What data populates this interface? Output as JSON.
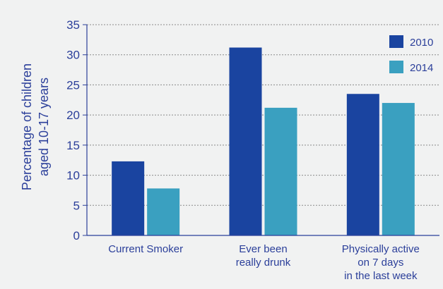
{
  "chart_data": {
    "type": "bar",
    "ylabel_lines": [
      "Percentage of children",
      "aged 10-17 years"
    ],
    "ylim": [
      0,
      35
    ],
    "yticks": [
      0,
      5,
      10,
      15,
      20,
      25,
      30,
      35
    ],
    "grid": true,
    "legend_position": "top-right",
    "categories": [
      {
        "lines": [
          "Current Smoker"
        ]
      },
      {
        "lines": [
          "Ever been",
          "really drunk"
        ]
      },
      {
        "lines": [
          "Physically active",
          "on 7 days",
          "in the last week"
        ]
      }
    ],
    "series": [
      {
        "name": "2010",
        "color": "#1a44a0",
        "values": [
          12.3,
          31.2,
          23.5
        ]
      },
      {
        "name": "2014",
        "color": "#3aa0c0",
        "values": [
          7.8,
          21.2,
          22.0
        ]
      }
    ]
  },
  "colors": {
    "background": "#f1f2f2",
    "text": "#2b3f9a",
    "grid": "#8a8a8a",
    "axis": "#2b3f9a"
  }
}
